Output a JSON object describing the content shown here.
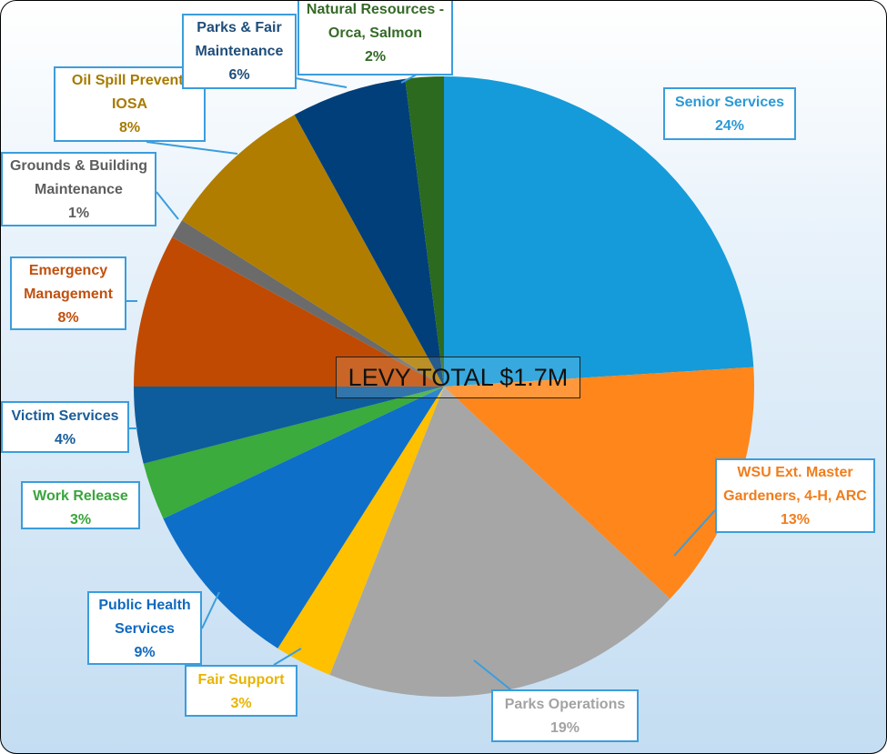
{
  "chart_data": {
    "type": "pie",
    "title": "LEVY TOTAL $1.7M",
    "start": "top, clockwise",
    "slices": [
      {
        "label": "Senior Services",
        "value": 24,
        "pct": "24%",
        "color": "#159bd9",
        "text_color": "#2b9ad6"
      },
      {
        "label": "WSU Ext. Master Gardeners, 4-H, ARC",
        "line1": "WSU Ext. Master",
        "line2": "Gardeners, 4-H, ARC",
        "value": 13,
        "pct": "13%",
        "color": "#ff861a",
        "text_color": "#f07d1c"
      },
      {
        "label": "Parks Operations",
        "value": 19,
        "pct": "19%",
        "color": "#a6a6a6",
        "text_color": "#a3a3a3"
      },
      {
        "label": "Fair Support",
        "value": 3,
        "pct": "3%",
        "color": "#ffc000",
        "text_color": "#e8b400"
      },
      {
        "label": "Public Health Services",
        "line1": "Public Health",
        "line2": "Services",
        "value": 9,
        "pct": "9%",
        "color": "#0e6fc8",
        "text_color": "#1069bf"
      },
      {
        "label": "Work Release",
        "value": 3,
        "pct": "3%",
        "color": "#3aab3c",
        "text_color": "#3aa53c"
      },
      {
        "label": "Victim Services",
        "value": 4,
        "pct": "4%",
        "color": "#0d5d9c",
        "text_color": "#1a5d9a"
      },
      {
        "label": "Emergency Management",
        "line1": "Emergency",
        "line2": "Management",
        "value": 8,
        "pct": "8%",
        "color": "#c04a02",
        "text_color": "#c0500f"
      },
      {
        "label": "Grounds & Building Maintenance",
        "line1": "Grounds & Building",
        "line2": "Maintenance",
        "value": 1,
        "pct": "1%",
        "color": "#6b6b6b",
        "text_color": "#5e5e5e"
      },
      {
        "label": "Oil Spill Preventi IOSA",
        "line1": "Oil Spill Preventi",
        "line2": "IOSA",
        "value": 8,
        "pct": "8%",
        "color": "#b07d00",
        "text_color": "#a77a00"
      },
      {
        "label": "Parks & Fair Maintenance",
        "line1": "Parks & Fair",
        "line2": "Maintenance",
        "value": 6,
        "pct": "6%",
        "color": "#003f7a",
        "text_color": "#1f4e7a"
      },
      {
        "label": "Natural Resources - Orca, Salmon",
        "line1": "Natural Resources -",
        "line2": "Orca, Salmon",
        "value": 2,
        "pct": "2%",
        "color": "#2b6a1f",
        "text_color": "#356a27"
      }
    ]
  }
}
